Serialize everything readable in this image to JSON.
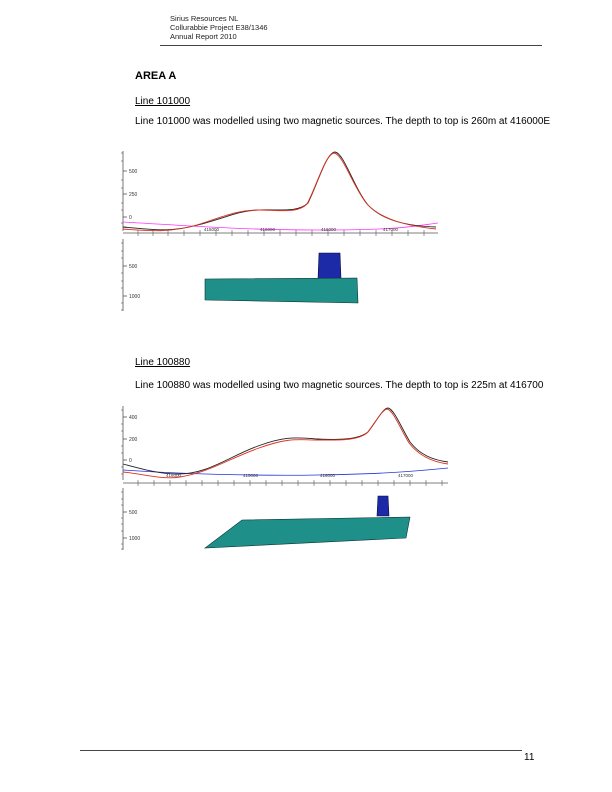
{
  "header": {
    "line1": "Sirius Resources NL",
    "line2": "Collurabbie Project E38/1346",
    "line3": "Annual Report 2010"
  },
  "area_title": "AREA A",
  "sections": [
    {
      "heading": "Line 101000",
      "paragraph": "Line 101000 was modelled using two magnetic sources. The depth to top is 260m at 416000E"
    },
    {
      "heading": "Line 100880",
      "paragraph": "Line 100880 was modelled using two magnetic sources. The depth to top is 225m at 416700"
    }
  ],
  "figures": [
    {
      "profile_ticks": [
        "500",
        "250",
        "0"
      ],
      "x_ticks": [
        "415000",
        "416000",
        "416000",
        "417000"
      ],
      "depth_ticks": [
        "500",
        "1000"
      ],
      "colors": {
        "observed": "#222222",
        "calculated": "#e03020",
        "regional": "#ff33ff",
        "body_deep": "#1f8f8a",
        "body_shallow": "#1c2aa8"
      }
    },
    {
      "profile_ticks": [
        "400",
        "200",
        "0"
      ],
      "x_ticks": [
        "416000",
        "415000",
        "416000",
        "417000"
      ],
      "depth_ticks": [
        "500",
        "1000"
      ],
      "colors": {
        "observed": "#222222",
        "calculated": "#e03020",
        "regional": "#2233dd",
        "body_deep": "#1f8f8a",
        "body_shallow": "#1c2aa8"
      }
    }
  ],
  "page_number": "11"
}
